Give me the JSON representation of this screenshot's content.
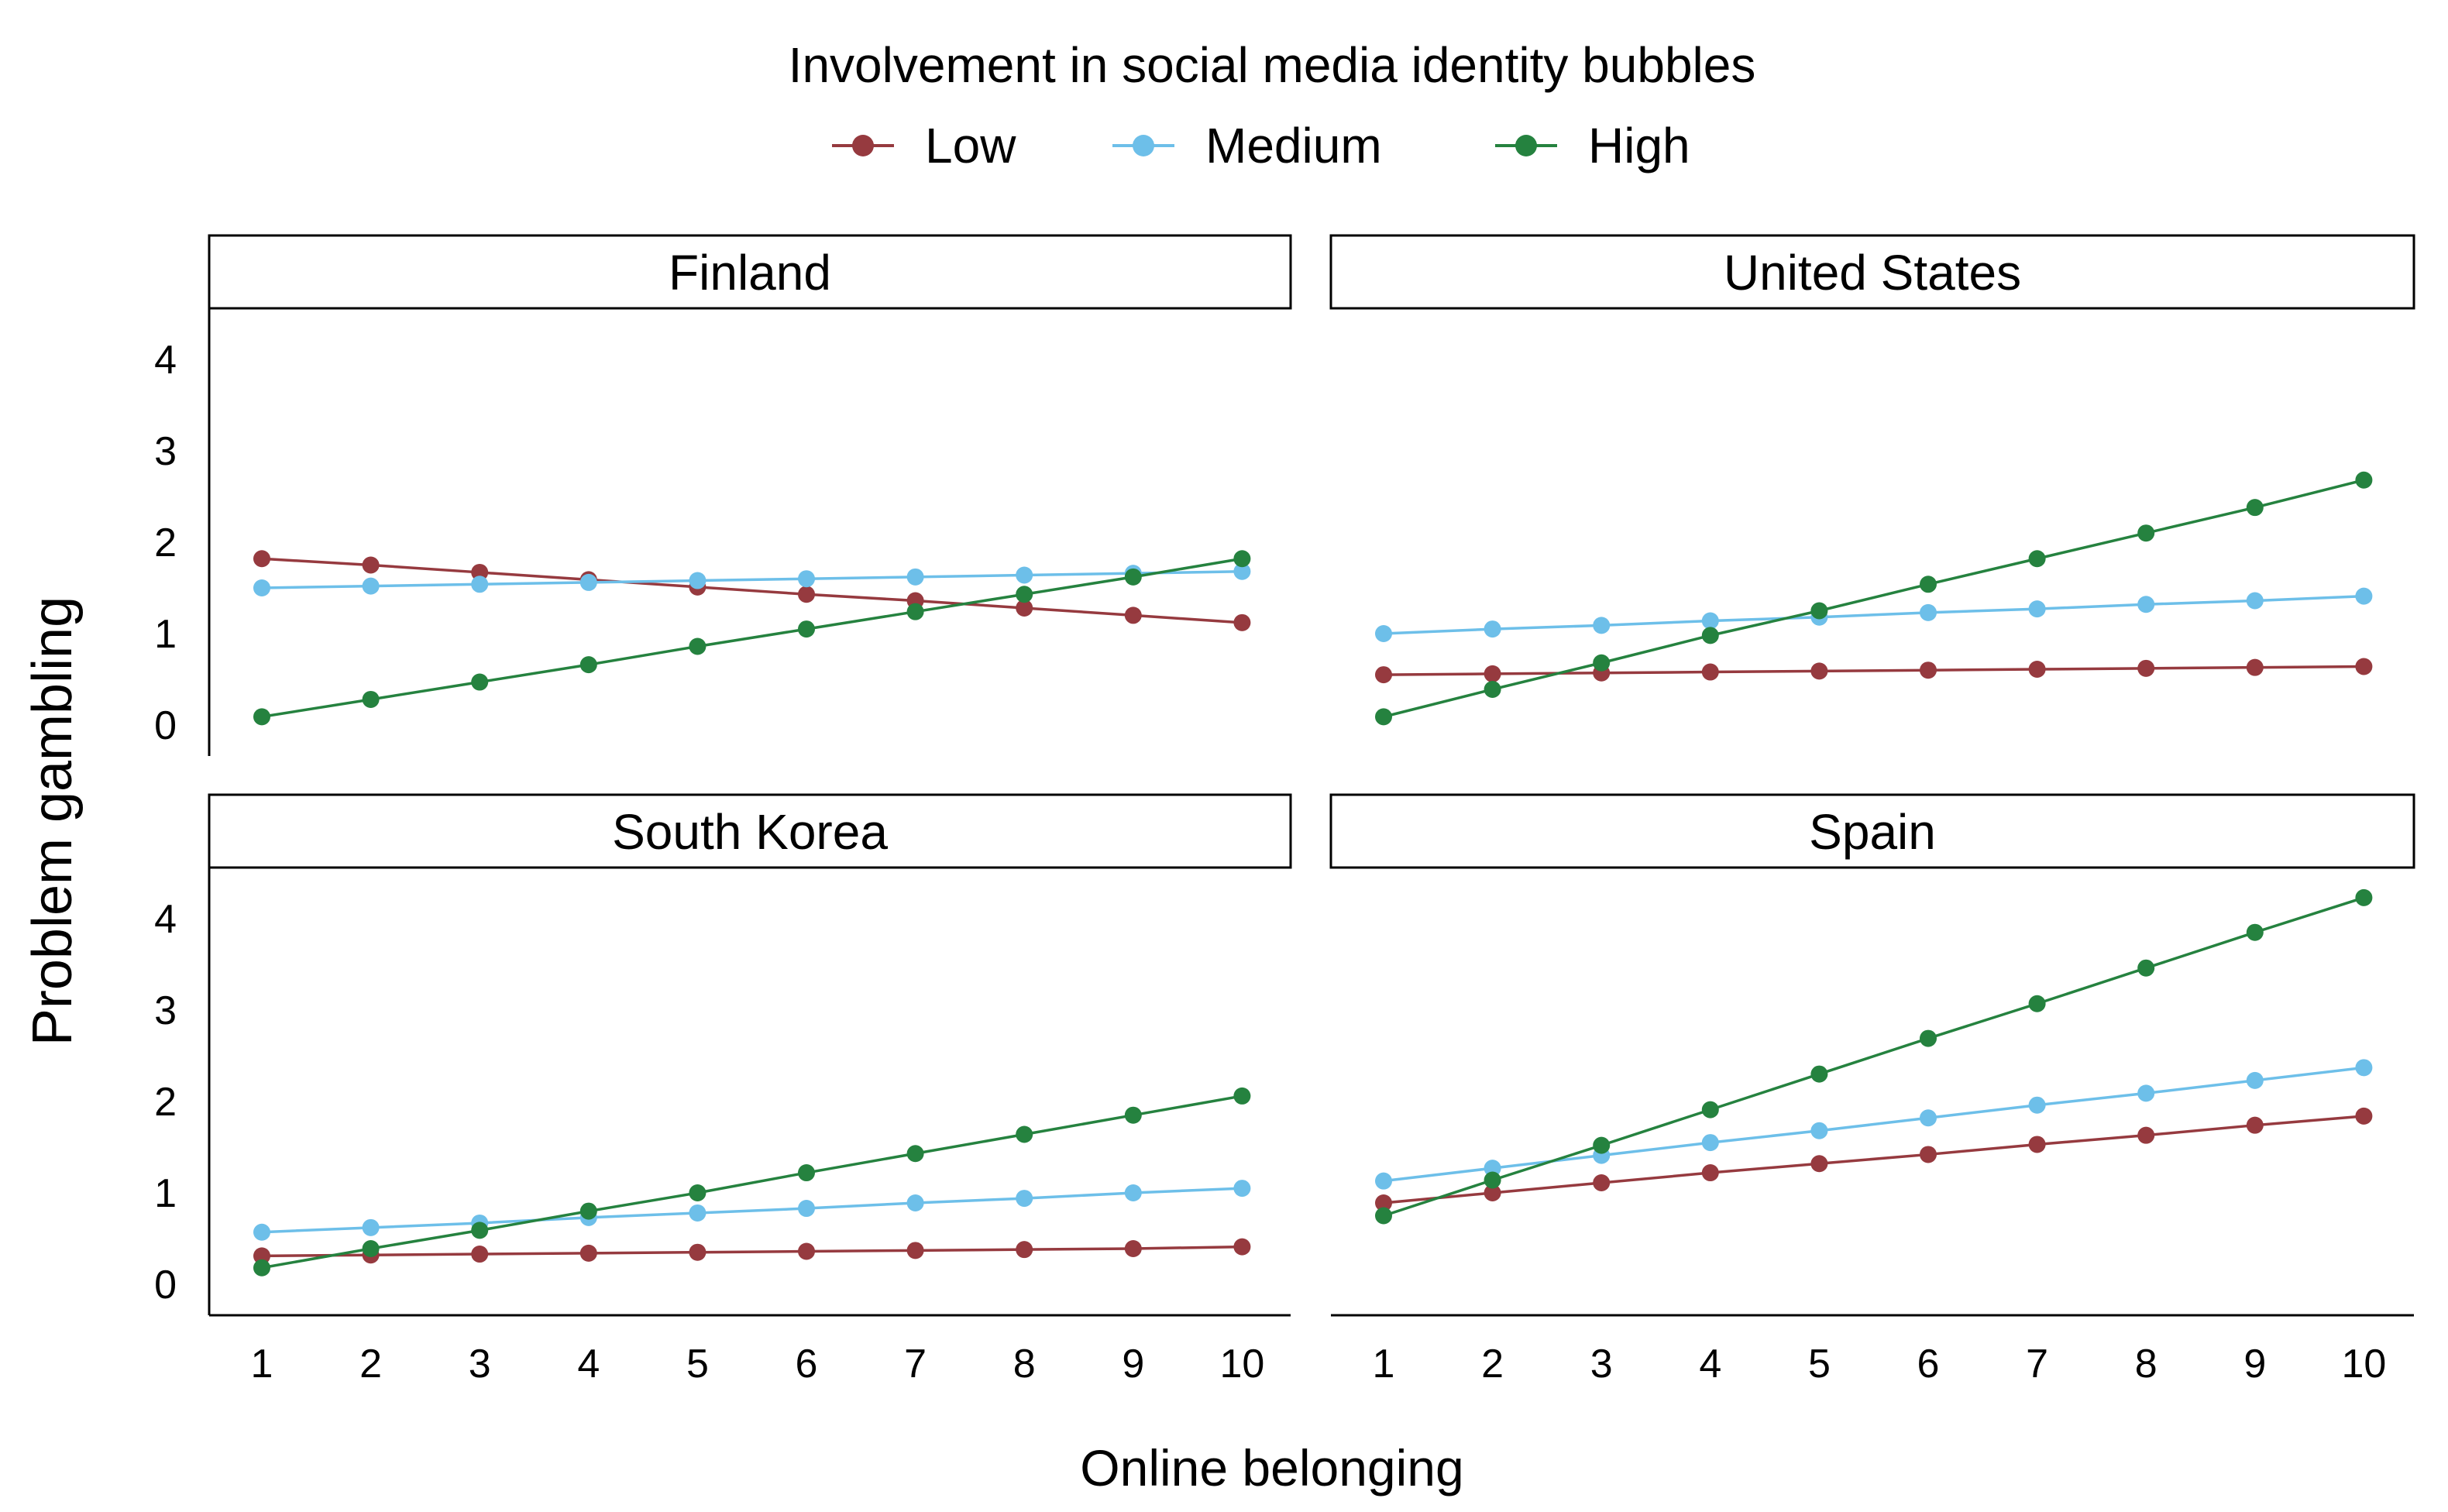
{
  "chart_data": {
    "type": "line",
    "layout": "faceted 2x2 small multiples",
    "legend": {
      "title": "Involvement in social media identity bubbles",
      "position": "top",
      "entries": [
        "Low",
        "Medium",
        "High"
      ]
    },
    "xlabel": "Online belonging",
    "ylabel": "Problem gambling",
    "x": [
      1,
      2,
      3,
      4,
      5,
      6,
      7,
      8,
      9,
      10
    ],
    "xticks": [
      "1",
      "2",
      "3",
      "4",
      "5",
      "6",
      "7",
      "8",
      "9",
      "10"
    ],
    "yticks": [
      "0",
      "1",
      "2",
      "3",
      "4"
    ],
    "ylim": [
      -0.3,
      4.5
    ],
    "xlim": [
      0.5,
      10.5
    ],
    "grid": false,
    "colors": {
      "Low": "#963a3f",
      "Medium": "#6dbfe9",
      "High": "#25823f"
    },
    "panels": [
      {
        "title": "Finland",
        "series": [
          {
            "name": "Low",
            "values": [
              1.82,
              1.75,
              1.67,
              1.59,
              1.51,
              1.43,
              1.36,
              1.28,
              1.2,
              1.12
            ]
          },
          {
            "name": "Medium",
            "values": [
              1.5,
              1.52,
              1.54,
              1.56,
              1.58,
              1.6,
              1.62,
              1.64,
              1.66,
              1.68
            ]
          },
          {
            "name": "High",
            "values": [
              0.09,
              0.28,
              0.47,
              0.66,
              0.86,
              1.05,
              1.24,
              1.43,
              1.62,
              1.82
            ]
          }
        ]
      },
      {
        "title": "United States",
        "series": [
          {
            "name": "Low",
            "values": [
              0.55,
              0.56,
              0.57,
              0.58,
              0.59,
              0.6,
              0.61,
              0.62,
              0.63,
              0.64
            ]
          },
          {
            "name": "Medium",
            "values": [
              1.0,
              1.05,
              1.09,
              1.14,
              1.18,
              1.23,
              1.27,
              1.32,
              1.36,
              1.41
            ]
          },
          {
            "name": "High",
            "values": [
              0.09,
              0.39,
              0.68,
              0.98,
              1.25,
              1.54,
              1.82,
              2.1,
              2.38,
              2.68
            ]
          }
        ]
      },
      {
        "title": "South Korea",
        "series": [
          {
            "name": "Low",
            "values": [
              0.31,
              0.32,
              0.33,
              0.34,
              0.35,
              0.36,
              0.37,
              0.38,
              0.39,
              0.41
            ]
          },
          {
            "name": "Medium",
            "values": [
              0.57,
              0.62,
              0.67,
              0.73,
              0.78,
              0.83,
              0.89,
              0.94,
              1.0,
              1.05
            ]
          },
          {
            "name": "High",
            "values": [
              0.18,
              0.39,
              0.59,
              0.8,
              1.0,
              1.22,
              1.43,
              1.64,
              1.85,
              2.06
            ]
          }
        ]
      },
      {
        "title": "Spain",
        "series": [
          {
            "name": "Low",
            "values": [
              0.89,
              1.0,
              1.11,
              1.22,
              1.32,
              1.42,
              1.53,
              1.63,
              1.74,
              1.84
            ]
          },
          {
            "name": "Medium",
            "values": [
              1.13,
              1.27,
              1.41,
              1.55,
              1.68,
              1.82,
              1.96,
              2.09,
              2.23,
              2.37
            ]
          },
          {
            "name": "High",
            "values": [
              0.75,
              1.14,
              1.52,
              1.91,
              2.3,
              2.69,
              3.07,
              3.46,
              3.85,
              4.23
            ]
          }
        ]
      }
    ]
  }
}
